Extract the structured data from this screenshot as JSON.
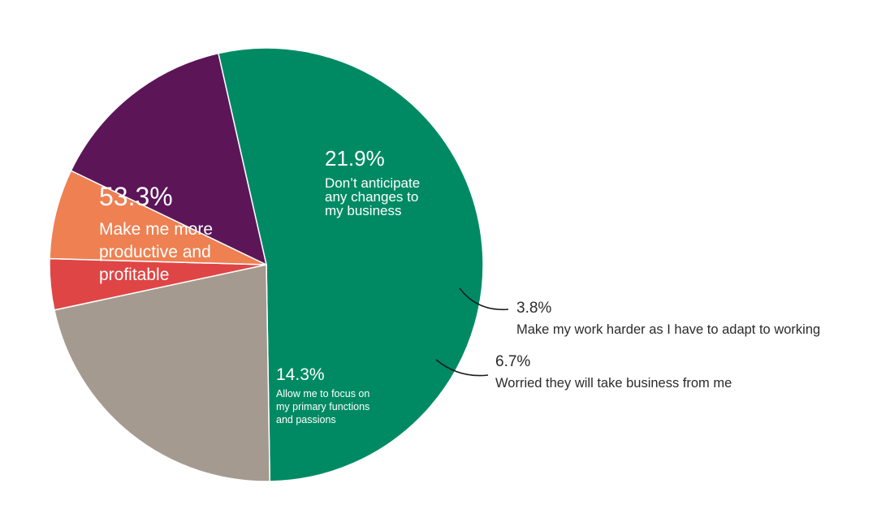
{
  "chart_data": {
    "type": "pie",
    "title": "",
    "slices": [
      {
        "value": 53.3,
        "label": "53.3%",
        "lines": [
          "Make me more",
          "productive and",
          "profitable"
        ],
        "color": "#008a64",
        "placement": "inside"
      },
      {
        "value": 21.9,
        "label": "21.9%",
        "lines": [
          "Don’t anticipate",
          "any changes to",
          "my business"
        ],
        "color": "#a59a8f",
        "placement": "inside"
      },
      {
        "value": 3.8,
        "label": "3.8%",
        "lines": [
          "Make my work harder as I have to adapt to working"
        ],
        "color": "#e04545",
        "placement": "outside"
      },
      {
        "value": 6.7,
        "label": "6.7%",
        "lines": [
          "Worried they will take business from me"
        ],
        "color": "#ee8052",
        "placement": "outside"
      },
      {
        "value": 14.3,
        "label": "14.3%",
        "lines": [
          "Allow me to focus on",
          "my primary functions",
          "and passions"
        ],
        "color": "#5c1658",
        "placement": "inside"
      }
    ]
  }
}
